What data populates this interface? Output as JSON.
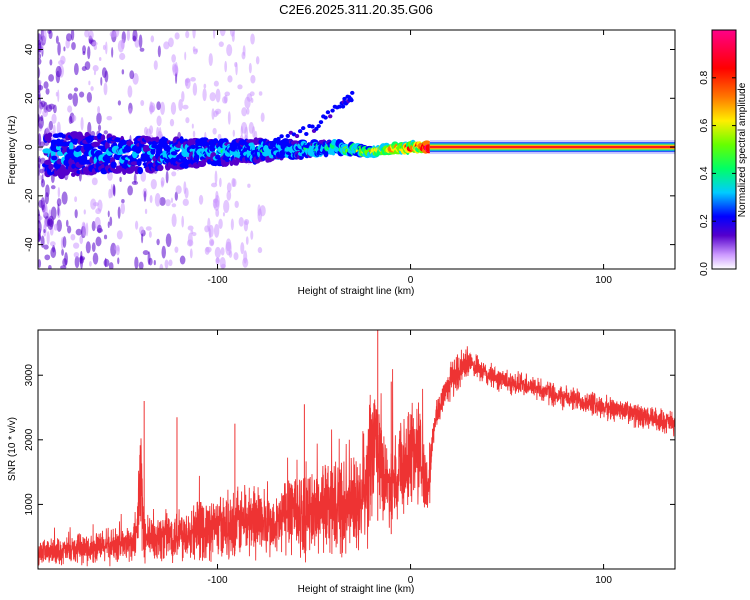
{
  "title": "C2E6.2025.311.20.35.G06",
  "chart_data": [
    {
      "type": "heatmap",
      "title": "C2E6.2025.311.20.35.G06",
      "xlabel": "Height of straight line (km)",
      "ylabel": "Frequency (Hz)",
      "xlim": [
        -193,
        137
      ],
      "ylim": [
        -50,
        48
      ],
      "x_ticks": [
        "-100",
        "0",
        "100"
      ],
      "y_ticks": [
        "40",
        "20",
        "0",
        "-20",
        "-40"
      ],
      "colorbar": {
        "label": "Normalized spectral amplitude",
        "range": [
          0.0,
          1.0
        ],
        "ticks": [
          "0.0",
          "0.2",
          "0.4",
          "0.6",
          "0.8"
        ],
        "colors": [
          "#ffffff",
          "#cc99ff",
          "#5500cc",
          "#0000ff",
          "#00ccff",
          "#00ff66",
          "#66ff00",
          "#ffee00",
          "#ff7700",
          "#ff0000",
          "#ff0088"
        ]
      },
      "ridge": {
        "description_points": [
          {
            "x": -180,
            "f": -3,
            "amp": 0.22
          },
          {
            "x": -140,
            "f": -3,
            "amp": 0.24
          },
          {
            "x": -100,
            "f": -2,
            "amp": 0.26
          },
          {
            "x": -60,
            "f": -1,
            "amp": 0.28
          },
          {
            "x": -40,
            "f": 0,
            "amp": 0.32
          },
          {
            "x": -20,
            "f": -2,
            "amp": 0.55
          },
          {
            "x": 0,
            "f": 0,
            "amp": 0.7
          },
          {
            "x": 10,
            "f": 0,
            "amp": 0.95
          },
          {
            "x": 137,
            "f": 0,
            "amp": 1.0
          }
        ],
        "secondary_branch": [
          {
            "x": -70,
            "f": 2
          },
          {
            "x": -50,
            "f": 8
          },
          {
            "x": -35,
            "f": 18
          },
          {
            "x": -30,
            "f": 21
          }
        ]
      }
    },
    {
      "type": "line",
      "xlabel": "Height of straight line (km)",
      "ylabel": "SNR (10 * v/v)",
      "xlim": [
        -193,
        137
      ],
      "ylim": [
        0,
        3700
      ],
      "x_ticks": [
        "-100",
        "0",
        "100"
      ],
      "y_ticks": [
        "1000",
        "2000",
        "3000"
      ],
      "color": "#ee3333",
      "series": [
        {
          "name": "SNR",
          "x": [
            -193,
            -170,
            -150,
            -142,
            -140,
            -138,
            -130,
            -120,
            -110,
            -100,
            -90,
            -80,
            -70,
            -62,
            -55,
            -45,
            -35,
            -25,
            -18,
            -15,
            -12,
            -8,
            -5,
            -2,
            0,
            5,
            8,
            10,
            12,
            16,
            20,
            25,
            30,
            40,
            50,
            60,
            70,
            80,
            90,
            100,
            110,
            120,
            130,
            137
          ],
          "values": [
            250,
            300,
            380,
            400,
            1500,
            450,
            500,
            550,
            600,
            650,
            700,
            800,
            600,
            1000,
            800,
            1000,
            900,
            1000,
            2000,
            1600,
            1300,
            1400,
            1700,
            1500,
            1900,
            1800,
            1200,
            1500,
            2200,
            2600,
            2900,
            3050,
            3200,
            3000,
            2900,
            2850,
            2750,
            2650,
            2600,
            2500,
            2450,
            2350,
            2300,
            2250
          ]
        }
      ],
      "spikes": [
        {
          "x": -138,
          "y": 2600
        },
        {
          "x": -121,
          "y": 2350
        },
        {
          "x": -91,
          "y": 2250
        },
        {
          "x": -55,
          "y": 2550
        },
        {
          "x": -17,
          "y": 3700
        },
        {
          "x": -10,
          "y": 2900
        }
      ]
    }
  ]
}
